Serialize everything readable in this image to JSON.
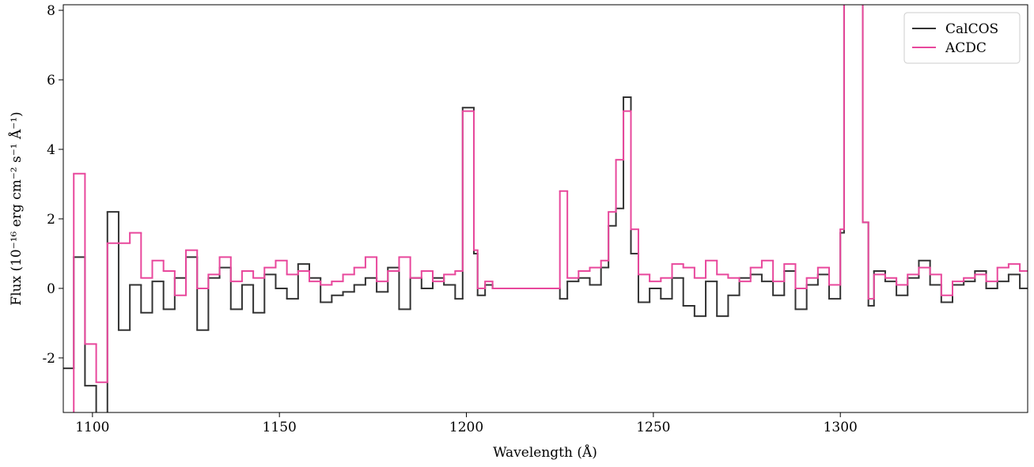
{
  "chart_data": {
    "type": "step",
    "x_label": "Wavelength (Å)",
    "y_label": "Flux (10⁻¹⁶ erg cm⁻² s⁻¹ Å⁻¹)",
    "x": [
      1092,
      1095,
      1098,
      1101,
      1104,
      1107,
      1110,
      1113,
      1116,
      1119,
      1122,
      1125,
      1128,
      1131,
      1134,
      1137,
      1140,
      1143,
      1146,
      1149,
      1152,
      1155,
      1158,
      1161,
      1164,
      1167,
      1170,
      1173,
      1176,
      1179,
      1182,
      1185,
      1188,
      1191,
      1194,
      1197,
      1199,
      1202,
      1203,
      1205,
      1207,
      1225,
      1227,
      1230,
      1233,
      1236,
      1238,
      1240,
      1242,
      1244,
      1246,
      1249,
      1252,
      1255,
      1258,
      1261,
      1264,
      1267,
      1270,
      1273,
      1276,
      1279,
      1282,
      1285,
      1288,
      1291,
      1294,
      1297,
      1300,
      1301,
      1306,
      1307.5,
      1309,
      1312,
      1315,
      1318,
      1321,
      1324,
      1327,
      1330,
      1333,
      1336,
      1339,
      1342,
      1345,
      1348
    ],
    "series": [
      {
        "name": "CalCOS",
        "color": "#333333",
        "values": [
          -2.3,
          0.9,
          -2.8,
          -4,
          2.2,
          -1.2,
          0.1,
          -0.7,
          0.2,
          -0.6,
          0.3,
          0.9,
          -1.2,
          0.3,
          0.6,
          -0.6,
          0.1,
          -0.7,
          0.4,
          0.0,
          -0.3,
          0.7,
          0.3,
          -0.4,
          -0.2,
          -0.1,
          0.1,
          0.3,
          -0.1,
          0.6,
          -0.6,
          0.3,
          0.0,
          0.3,
          0.1,
          -0.3,
          5.2,
          1.0,
          -0.2,
          0.1,
          0,
          -0.3,
          0.2,
          0.3,
          0.1,
          0.6,
          1.8,
          2.3,
          5.5,
          1.0,
          -0.4,
          0.0,
          -0.3,
          0.3,
          -0.5,
          -0.8,
          0.2,
          -0.8,
          -0.2,
          0.3,
          0.4,
          0.2,
          -0.2,
          0.5,
          -0.6,
          0.1,
          0.4,
          -0.3,
          1.6,
          10,
          1.9,
          -0.5,
          0.5,
          0.2,
          -0.2,
          0.3,
          0.8,
          0.1,
          -0.4,
          0.1,
          0.2,
          0.5,
          0.0,
          0.2,
          0.4,
          0.0
        ]
      },
      {
        "name": "ACDC",
        "color": "#e8489c",
        "values": [
          -4,
          3.3,
          -1.6,
          -2.7,
          1.3,
          1.3,
          1.6,
          0.3,
          0.8,
          0.5,
          -0.2,
          1.1,
          0.0,
          0.4,
          0.9,
          0.2,
          0.5,
          0.3,
          0.6,
          0.8,
          0.4,
          0.5,
          0.2,
          0.1,
          0.2,
          0.4,
          0.6,
          0.9,
          0.2,
          0.5,
          0.9,
          0.3,
          0.5,
          0.2,
          0.4,
          0.5,
          5.1,
          1.1,
          0.0,
          0.2,
          0,
          2.8,
          0.3,
          0.5,
          0.6,
          0.8,
          2.2,
          3.7,
          5.1,
          1.7,
          0.4,
          0.2,
          0.3,
          0.7,
          0.6,
          0.3,
          0.8,
          0.4,
          0.3,
          0.2,
          0.6,
          0.8,
          0.2,
          0.7,
          0.0,
          0.3,
          0.6,
          0.1,
          1.7,
          10,
          1.9,
          -0.3,
          0.4,
          0.3,
          0.1,
          0.4,
          0.6,
          0.4,
          -0.2,
          0.2,
          0.3,
          0.4,
          0.2,
          0.6,
          0.7,
          0.5
        ]
      }
    ],
    "xlim": [
      1092.2,
      1350.1
    ],
    "ylim": [
      -3.57,
      8.16
    ],
    "xticks": [
      1100,
      1150,
      1200,
      1250,
      1300
    ],
    "yticks": [
      -2,
      0,
      2,
      4,
      6,
      8
    ],
    "legend": "upper right"
  }
}
